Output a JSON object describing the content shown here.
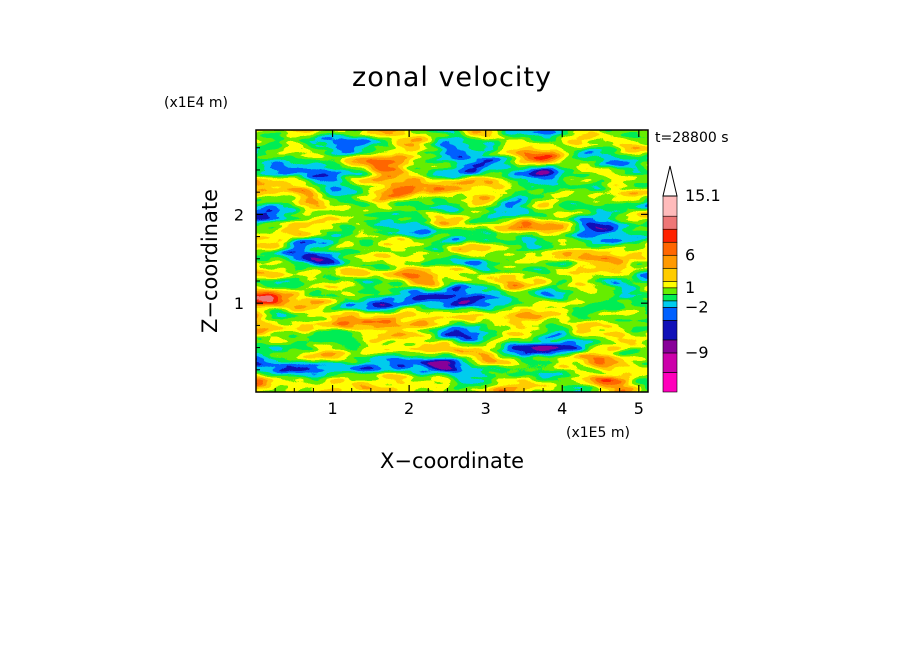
{
  "chart_data": {
    "type": "heatmap",
    "title": "zonal velocity",
    "xlabel": "X−coordinate",
    "ylabel": "Z−coordinate",
    "x_scale_label": "(x1E5 m)",
    "y_scale_label": "(x1E4 m)",
    "time_label": "t=28800 s",
    "xlim": [
      0,
      5.12
    ],
    "ylim": [
      0,
      2.95
    ],
    "x_ticks": [
      "1",
      "2",
      "3",
      "4",
      "5"
    ],
    "x_tick_values": [
      1,
      2,
      3,
      4,
      5
    ],
    "y_ticks": [
      "1",
      "2"
    ],
    "y_tick_values": [
      1,
      2
    ],
    "colorbar": {
      "levels": [
        -15,
        -12,
        -9,
        -7,
        -4,
        -2,
        -1,
        0,
        1,
        2,
        4,
        6,
        8,
        10,
        12,
        15.1
      ],
      "labels": [
        "15.1",
        "6",
        "1",
        "−2",
        "−9"
      ],
      "label_values": [
        15.1,
        6,
        1,
        -2,
        -9
      ],
      "colors": [
        "#ff00bb",
        "#cc00aa",
        "#880099",
        "#1010b8",
        "#0060ff",
        "#00ccee",
        "#00ee55",
        "#66ee00",
        "#ffff00",
        "#ffcc00",
        "#ff9900",
        "#ff6600",
        "#ff2200",
        "#ee7777",
        "#ffbbbb"
      ],
      "extend_max": true
    },
    "grid": false
  }
}
